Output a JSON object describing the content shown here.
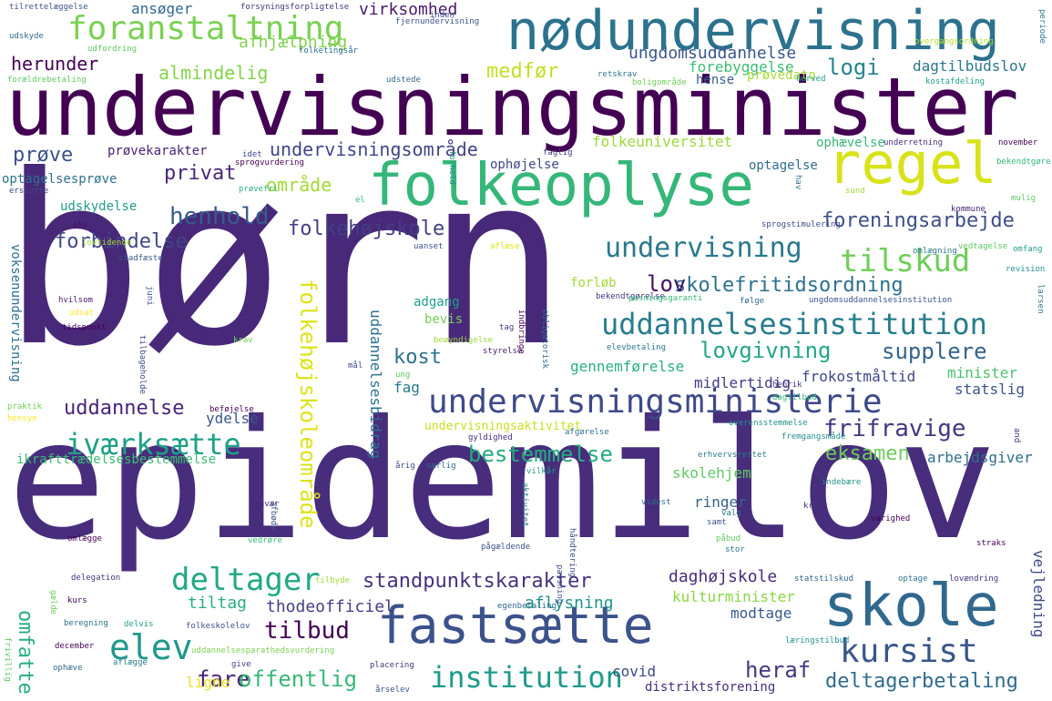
{
  "words": [
    {
      "text": "børn",
      "color": "#482878"
    },
    {
      "text": "epidemilov",
      "color": "#472d7b"
    },
    {
      "text": "undervisningsminister",
      "color": "#440154"
    },
    {
      "text": "nødundervisning",
      "color": "#2c728e"
    },
    {
      "text": "folkeoplyse",
      "color": "#35b779"
    },
    {
      "text": "regel",
      "color": "#d8e219"
    },
    {
      "text": "skole",
      "color": "#31688e"
    },
    {
      "text": "fastsætte",
      "color": "#3b528b"
    },
    {
      "text": "undervisningsministerie",
      "color": "#3e4989"
    },
    {
      "text": "uddannelsesinstitution",
      "color": "#287d8e"
    },
    {
      "text": "foranstaltning",
      "color": "#7ad151"
    },
    {
      "text": "undervisning",
      "color": "#2a788e"
    },
    {
      "text": "tilskud",
      "color": "#6ece58"
    },
    {
      "text": "deltager",
      "color": "#22a884"
    },
    {
      "text": "iværksætte",
      "color": "#1fa088"
    },
    {
      "text": "elev",
      "color": "#1f988b"
    },
    {
      "text": "kursist",
      "color": "#39568c"
    },
    {
      "text": "institution",
      "color": "#1e9b8a"
    },
    {
      "text": "folkehøjskoleområde",
      "color": "#dde318"
    },
    {
      "text": "henhold",
      "color": "#365d8d"
    },
    {
      "text": "lovgivning",
      "color": "#22a785"
    },
    {
      "text": "supplere",
      "color": "#33638d"
    },
    {
      "text": "standpunktskarakter",
      "color": "#46337e"
    },
    {
      "text": "skolefritidsordning",
      "color": "#2d708e"
    },
    {
      "text": "frifravige",
      "color": "#453781"
    },
    {
      "text": "foreningsarbejde",
      "color": "#3d4e8a"
    },
    {
      "text": "folkehøjskole",
      "color": "#433e85"
    },
    {
      "text": "bestemmelse",
      "color": "#25ab82"
    },
    {
      "text": "uddannelse",
      "color": "#482576"
    },
    {
      "text": "forbindelse",
      "color": "#3f4788"
    },
    {
      "text": "almindelig",
      "color": "#84d44b"
    },
    {
      "text": "medfør",
      "color": "#c2df23"
    },
    {
      "text": "ungdomsuddannelse",
      "color": "#39568c"
    },
    {
      "text": "undervisningsområde",
      "color": "#414487"
    },
    {
      "text": "omfatte",
      "color": "#29af7f"
    },
    {
      "text": "tilbud",
      "color": "#440154"
    },
    {
      "text": "fare",
      "color": "#482475"
    },
    {
      "text": "offentlig",
      "color": "#38b977"
    },
    {
      "text": "heraf",
      "color": "#453781"
    },
    {
      "text": "deltagerbetaling",
      "color": "#2f6c8e"
    },
    {
      "text": "eksamen",
      "color": "#6ccd5a"
    },
    {
      "text": "prøve",
      "color": "#3b518b"
    },
    {
      "text": "privat",
      "color": "#482677"
    },
    {
      "text": "herunder",
      "color": "#440154"
    },
    {
      "text": "logi",
      "color": "#26828e"
    },
    {
      "text": "lov",
      "color": "#471063"
    },
    {
      "text": "kost",
      "color": "#2c728e"
    },
    {
      "text": "virksomhed",
      "color": "#481a6c"
    },
    {
      "text": "område",
      "color": "#a2da37"
    },
    {
      "text": "folkeuniversitet",
      "color": "#9bd93c"
    },
    {
      "text": "daghøjskole",
      "color": "#472c7a"
    },
    {
      "text": "aflysning",
      "color": "#1f958b"
    },
    {
      "text": "tiltag",
      "color": "#29af7f"
    },
    {
      "text": "thodeofficiel",
      "color": "#433e85"
    },
    {
      "text": "modtage",
      "color": "#38588c"
    },
    {
      "text": "kulturminister",
      "color": "#8bd646"
    },
    {
      "text": "arbejdsgiver",
      "color": "#2e6f8e"
    },
    {
      "text": "minister",
      "color": "#4ac16d"
    },
    {
      "text": "statslig",
      "color": "#3a548c"
    },
    {
      "text": "fag",
      "color": "#2a788e"
    },
    {
      "text": "gennemførelse",
      "color": "#2ab07f"
    },
    {
      "text": "midlertidig",
      "color": "#443983"
    },
    {
      "text": "frokostmåltid",
      "color": "#404688"
    },
    {
      "text": "forebyggelse",
      "color": "#3dbc74"
    },
    {
      "text": "afhjælpning",
      "color": "#7fd34e"
    },
    {
      "text": "dagtilbudslov",
      "color": "#2a788e"
    },
    {
      "text": "hense",
      "color": "#355e8d"
    },
    {
      "text": "prøvedato",
      "color": "#a5db36"
    },
    {
      "text": "optagelse",
      "color": "#2e6f8e"
    },
    {
      "text": "ophævelse",
      "color": "#38b977"
    },
    {
      "text": "prøvekarakter",
      "color": "#482173"
    },
    {
      "text": "optagelsesprøve",
      "color": "#2c728e"
    },
    {
      "text": "udskydelse",
      "color": "#1e9c89"
    },
    {
      "text": "ophøjelse",
      "color": "#3f4889"
    },
    {
      "text": "ansøger",
      "color": "#31678e"
    },
    {
      "text": "ydelse",
      "color": "#375a8c"
    },
    {
      "text": "ikrafttrædelsesbestemmelse",
      "color": "#3dbc74"
    },
    {
      "text": "voksenundervisning",
      "color": "#2d708e"
    },
    {
      "text": "uddannelsesbidrag",
      "color": "#2c718e"
    },
    {
      "text": "adgang",
      "color": "#1f9e89"
    },
    {
      "text": "bevis",
      "color": "#75d054"
    },
    {
      "text": "forløb",
      "color": "#a0da39"
    },
    {
      "text": "ringer",
      "color": "#33638d"
    },
    {
      "text": "skolehjem",
      "color": "#5ec962"
    },
    {
      "text": "vejledning",
      "color": "#3e4a89"
    },
    {
      "text": "covid",
      "color": "#3f4788"
    },
    {
      "text": "distriktsforening",
      "color": "#472d7b"
    },
    {
      "text": "ligne",
      "color": "#e5e419"
    },
    {
      "text": "undervisningsaktivitet",
      "color": "#c8e020"
    },
    {
      "text": "tilrettelæggelse",
      "color": "#3b528b"
    },
    {
      "text": "forsyningsforpligtelse",
      "color": "#46337e"
    },
    {
      "text": "udskyde",
      "color": "#31688e"
    },
    {
      "text": "udfordring",
      "color": "#5cc863"
    },
    {
      "text": "folketingsår",
      "color": "#2d708e"
    },
    {
      "text": "inden",
      "color": "#3e4989"
    },
    {
      "text": "fjernundervisning",
      "color": "#3b528b"
    },
    {
      "text": "overgangsordning",
      "color": "#b5de2b"
    },
    {
      "text": "periode",
      "color": "#2a788e"
    },
    {
      "text": "forældrebetaling",
      "color": "#5ec962"
    },
    {
      "text": "udstede",
      "color": "#31688e"
    },
    {
      "text": "retskrav",
      "color": "#2c728e"
    },
    {
      "text": "boligområde",
      "color": "#6ece58"
    },
    {
      "text": "herved",
      "color": "#1f9e89"
    },
    {
      "text": "kostafdeling",
      "color": "#1f9e89"
    },
    {
      "text": "sprogvurdering",
      "color": "#440154"
    },
    {
      "text": "idet",
      "color": "#3e4989"
    },
    {
      "text": "faglig",
      "color": "#443a83"
    },
    {
      "text": "underretning",
      "color": "#472c7a"
    },
    {
      "text": "november",
      "color": "#440154"
    },
    {
      "text": "bekendtgøre",
      "color": "#35b779"
    },
    {
      "text": "erstatte",
      "color": "#404688"
    },
    {
      "text": "prøvefri",
      "color": "#2ab07f"
    },
    {
      "text": "forhold",
      "color": "#21918c"
    },
    {
      "text": "sund",
      "color": "#a0da39"
    },
    {
      "text": "hav",
      "color": "#2c728e"
    },
    {
      "text": "mulig",
      "color": "#5ec962"
    },
    {
      "text": "kommune",
      "color": "#482475"
    },
    {
      "text": "sprogstimulering",
      "color": "#3e4989"
    },
    {
      "text": "el",
      "color": "#35b779"
    },
    {
      "text": "ole",
      "color": "#470d60"
    },
    {
      "text": "lovtidende",
      "color": "#a0da39"
    },
    {
      "text": "uanset",
      "color": "#3b528b"
    },
    {
      "text": "aflæse",
      "color": "#dde318"
    },
    {
      "text": "omlægning",
      "color": "#2a788e"
    },
    {
      "text": "vedtagelse",
      "color": "#5ec962"
    },
    {
      "text": "omfang",
      "color": "#1f9e89"
    },
    {
      "text": "stadfæste",
      "color": "#38598c"
    },
    {
      "text": "revision",
      "color": "#21918c"
    },
    {
      "text": "hvilsom",
      "color": "#481a6c"
    },
    {
      "text": "juni",
      "color": "#3b528b"
    },
    {
      "text": "udsat",
      "color": "#fde725"
    },
    {
      "text": "tidspunkt",
      "color": "#440154"
    },
    {
      "text": "bekendtgørelse",
      "color": "#46337e"
    },
    {
      "text": "pasningsgaranti",
      "color": "#35b779"
    },
    {
      "text": "følge",
      "color": "#31688e"
    },
    {
      "text": "ungdomsuddannelsesinstitution",
      "color": "#3b528b"
    },
    {
      "text": "larsen",
      "color": "#2a788e"
    },
    {
      "text": "tag",
      "color": "#46337e"
    },
    {
      "text": "indbringe",
      "color": "#440154"
    },
    {
      "text": "tilbageholde",
      "color": "#3e4989"
    },
    {
      "text": "krav",
      "color": "#6ece58"
    },
    {
      "text": "beøyndigelse",
      "color": "#9bd93c"
    },
    {
      "text": "styrelse",
      "color": "#481a6c"
    },
    {
      "text": "obligatorisk",
      "color": "#31688e"
    },
    {
      "text": "elevbetaling",
      "color": "#2a788e"
    },
    {
      "text": "henrik",
      "color": "#46337e"
    },
    {
      "text": "mål",
      "color": "#3e4989"
    },
    {
      "text": "ung",
      "color": "#5ec962"
    },
    {
      "text": "praktik",
      "color": "#6ece58"
    },
    {
      "text": "hensyn",
      "color": "#fde725"
    },
    {
      "text": "beføjelse",
      "color": "#440154"
    },
    {
      "text": "gyldighed",
      "color": "#472d7b"
    },
    {
      "text": "afgørelse",
      "color": "#2c728e"
    },
    {
      "text": "dagtilbud",
      "color": "#35b779"
    },
    {
      "text": "overensstemmelse",
      "color": "#21918c"
    },
    {
      "text": "fremgangsmåde",
      "color": "#21918c"
    },
    {
      "text": "and",
      "color": "#46337e"
    },
    {
      "text": "årig",
      "color": "#3e4989"
    },
    {
      "text": "særlig",
      "color": "#31688e"
    },
    {
      "text": "vilkår",
      "color": "#1f9e89"
    },
    {
      "text": "erhvervsrettet",
      "color": "#2a788e"
    },
    {
      "text": "indebære",
      "color": "#21918c"
    },
    {
      "text": "fravær",
      "color": "#482878"
    },
    {
      "text": "afbøde",
      "color": "#3b528b"
    },
    {
      "text": "omlægge",
      "color": "#440154"
    },
    {
      "text": "vedrøre",
      "color": "#35b779"
    },
    {
      "text": "aktivitet",
      "color": "#2a788e"
    },
    {
      "text": "videst",
      "color": "#31688e"
    },
    {
      "text": "kraft",
      "color": "#46337e"
    },
    {
      "text": "samt",
      "color": "#3b528b"
    },
    {
      "text": "valg",
      "color": "#2c728e"
    },
    {
      "text": "varighed",
      "color": "#440154"
    },
    {
      "text": "pågældende",
      "color": "#3b528b"
    },
    {
      "text": "håndtering",
      "color": "#3e4989"
    },
    {
      "text": "påbud",
      "color": "#5ec962"
    },
    {
      "text": "stor",
      "color": "#2a788e"
    },
    {
      "text": "straks",
      "color": "#440154"
    },
    {
      "text": "delegation",
      "color": "#46337e"
    },
    {
      "text": "tilbyde",
      "color": "#a0da39"
    },
    {
      "text": "statstilskud",
      "color": "#31688e"
    },
    {
      "text": "optage",
      "color": "#2a788e"
    },
    {
      "text": "lovændring",
      "color": "#46337e"
    },
    {
      "text": "kurs",
      "color": "#440154"
    },
    {
      "text": "gælde",
      "color": "#6ece58"
    },
    {
      "text": "passning",
      "color": "#3b528b"
    },
    {
      "text": "egenbetaling",
      "color": "#31688e"
    },
    {
      "text": "folkeskolelov",
      "color": "#3b528b"
    },
    {
      "text": "beregning",
      "color": "#2c728e"
    },
    {
      "text": "delvis",
      "color": "#1f9e89"
    },
    {
      "text": "læringstilbud",
      "color": "#21918c"
    },
    {
      "text": "december",
      "color": "#440154"
    },
    {
      "text": "uddannelsesparathedsvurdering",
      "color": "#7ad151"
    },
    {
      "text": "frivillig",
      "color": "#5ec962"
    },
    {
      "text": "ophæve",
      "color": "#31688e"
    },
    {
      "text": "aflægge",
      "color": "#2a788e"
    },
    {
      "text": "give",
      "color": "#3e4989"
    },
    {
      "text": "placering",
      "color": "#46337e"
    },
    {
      "text": "årselev",
      "color": "#3b528b"
    }
  ]
}
